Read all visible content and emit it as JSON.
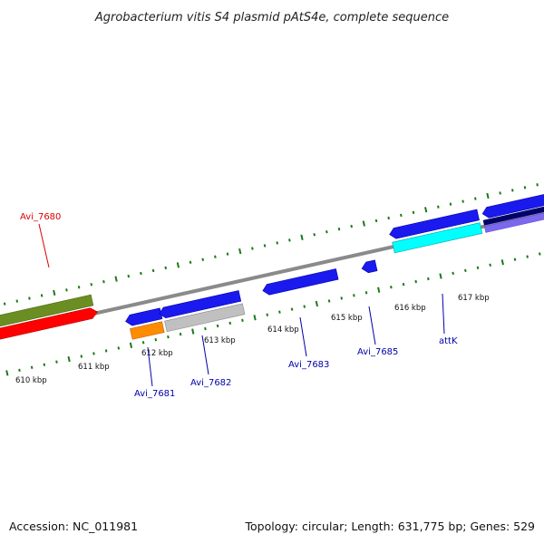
{
  "title": "Agrobacterium vitis S4 plasmid pAtS4e, complete sequence",
  "footer": {
    "accession": "Accession: NC_011981",
    "summary": "Topology: circular; Length: 631,775 bp; Genes: 529"
  },
  "ticks": [
    "610 kbp",
    "611 kbp",
    "612 kbp",
    "613 kbp",
    "614 kbp",
    "615 kbp",
    "616 kbp",
    "617 kbp"
  ],
  "labels": {
    "avi_7680": "Avi_7680",
    "avi_7681": "Avi_7681",
    "avi_7682": "Avi_7682",
    "avi_7683": "Avi_7683",
    "avi_7685": "Avi_7685",
    "attk": "attK"
  },
  "colors": {
    "backbone": "#8a8a8a",
    "tick": "#1a7a1a",
    "forward_gene": "#1a1aee",
    "olive_gene": "#6b8e23",
    "red_gene": "#ff0000",
    "orange_gene": "#ff8c00",
    "gray_gene": "#c0c0c0",
    "cyan_gene": "#00ffff",
    "navy_gene": "#00006b",
    "slate_gene": "#7b68ee",
    "label_blue": "#0000aa",
    "label_red": "#dd0000"
  }
}
